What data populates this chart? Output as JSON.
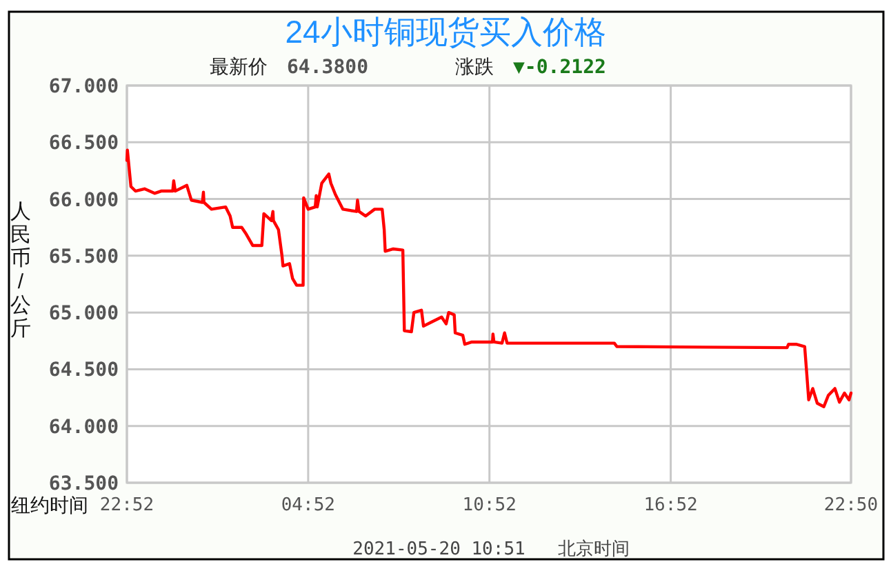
{
  "chart_data": {
    "type": "line",
    "title": "24小时铜现货买入价格",
    "subtitle": "最新价 64.3800",
    "ylabel": "人民币/公斤",
    "annotations": [
      "涨跌 ▼-0.2122",
      "纽约时间",
      "2021-05-20 10:51   北京时间"
    ],
    "xlim": [
      "2021-05-18T22:52",
      "2021-05-19T22:50"
    ],
    "xticks": [
      {
        "value": "2021-05-18T22:52",
        "label": "22:52"
      },
      {
        "value": "2021-05-19T04:52",
        "label": "04:52"
      },
      {
        "value": "2021-05-19T10:52",
        "label": "10:52"
      },
      {
        "value": "2021-05-19T16:52",
        "label": "16:52"
      },
      {
        "value": "2021-05-19T22:50",
        "label": "22:50"
      }
    ],
    "ylim": [
      63.5,
      67
    ],
    "yticks": [
      {
        "value": 63.5,
        "label": "63.500"
      },
      {
        "value": 64,
        "label": "64.000"
      },
      {
        "value": 64.5,
        "label": "64.500"
      },
      {
        "value": 65,
        "label": "65.000"
      },
      {
        "value": 65.5,
        "label": "65.500"
      },
      {
        "value": 66,
        "label": "66.000"
      },
      {
        "value": 66.5,
        "label": "66.500"
      },
      {
        "value": 67,
        "label": "67.000"
      }
    ],
    "grid": true,
    "line_style": "solid",
    "marker": "none",
    "series": [
      {
        "color": "#ff0000",
        "x": [
          "2021-05-18T22:52",
          "2021-05-18T22:53",
          "2021-05-18T23:00",
          "2021-05-18T23:09",
          "2021-05-18T23:27",
          "2021-05-18T23:47",
          "2021-05-19T00:00",
          "2021-05-19T00:23",
          "2021-05-19T00:25",
          "2021-05-19T00:28",
          "2021-05-19T00:51",
          "2021-05-19T01:00",
          "2021-05-19T01:22",
          "2021-05-19T01:24",
          "2021-05-19T01:25",
          "2021-05-19T01:40",
          "2021-05-19T02:08",
          "2021-05-19T02:17",
          "2021-05-19T02:22",
          "2021-05-19T02:40",
          "2021-05-19T02:49",
          "2021-05-19T03:02",
          "2021-05-19T03:20",
          "2021-05-19T03:24",
          "2021-05-19T03:39",
          "2021-05-19T03:42",
          "2021-05-19T03:43",
          "2021-05-19T03:53",
          "2021-05-19T04:00",
          "2021-05-19T04:02",
          "2021-05-19T04:15",
          "2021-05-19T04:21",
          "2021-05-19T04:29",
          "2021-05-19T04:42",
          "2021-05-19T04:43",
          "2021-05-19T04:52",
          "2021-05-19T05:06",
          "2021-05-19T05:08",
          "2021-05-19T05:10",
          "2021-05-19T05:19",
          "2021-05-19T05:33",
          "2021-05-19T05:37",
          "2021-05-19T05:46",
          "2021-05-19T06:01",
          "2021-05-19T06:28",
          "2021-05-19T06:30",
          "2021-05-19T06:33",
          "2021-05-19T06:46",
          "2021-05-19T07:04",
          "2021-05-19T07:19",
          "2021-05-19T07:23",
          "2021-05-19T07:25",
          "2021-05-19T07:41",
          "2021-05-19T08:00",
          "2021-05-19T08:03",
          "2021-05-19T08:17",
          "2021-05-19T08:22",
          "2021-05-19T08:37",
          "2021-05-19T08:41",
          "2021-05-19T08:59",
          "2021-05-19T09:17",
          "2021-05-19T09:26",
          "2021-05-19T09:31",
          "2021-05-19T09:42",
          "2021-05-19T09:44",
          "2021-05-19T09:59",
          "2021-05-19T10:03",
          "2021-05-19T10:17",
          "2021-05-19T10:58",
          "2021-05-19T10:59",
          "2021-05-19T11:01",
          "2021-05-19T11:17",
          "2021-05-19T11:22",
          "2021-05-19T11:27",
          "2021-05-19T15:00",
          "2021-05-19T15:05",
          "2021-05-19T20:43",
          "2021-05-19T20:46",
          "2021-05-19T21:01",
          "2021-05-19T21:18",
          "2021-05-19T21:22",
          "2021-05-19T21:26",
          "2021-05-19T21:34",
          "2021-05-19T21:43",
          "2021-05-19T21:56",
          "2021-05-19T22:05",
          "2021-05-19T22:18",
          "2021-05-19T22:27",
          "2021-05-19T22:37",
          "2021-05-19T22:46",
          "2021-05-19T22:50"
        ],
        "values": [
          66.34,
          66.43,
          66.11,
          66.07,
          66.09,
          66.05,
          66.07,
          66.07,
          66.16,
          66.07,
          66.12,
          65.99,
          65.97,
          66.06,
          65.97,
          65.91,
          65.93,
          65.85,
          65.75,
          65.75,
          65.69,
          65.59,
          65.59,
          65.87,
          65.81,
          65.89,
          65.81,
          65.73,
          65.5,
          65.41,
          65.43,
          65.3,
          65.24,
          65.24,
          66.01,
          65.91,
          65.93,
          66.03,
          65.93,
          66.14,
          66.22,
          66.14,
          66.04,
          65.91,
          65.89,
          65.99,
          65.89,
          65.85,
          65.91,
          65.91,
          65.73,
          65.54,
          65.56,
          65.55,
          64.84,
          64.83,
          65.0,
          65.02,
          64.88,
          64.92,
          64.96,
          64.9,
          65.0,
          64.98,
          64.82,
          64.8,
          64.72,
          64.74,
          64.74,
          64.81,
          64.74,
          64.73,
          64.82,
          64.73,
          64.73,
          64.7,
          64.69,
          64.72,
          64.72,
          64.7,
          64.47,
          64.23,
          64.33,
          64.2,
          64.17,
          64.27,
          64.33,
          64.21,
          64.29,
          64.23,
          64.29
        ]
      }
    ]
  }
}
